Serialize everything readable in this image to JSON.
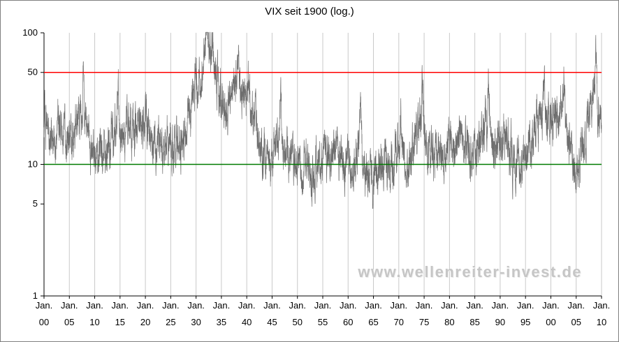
{
  "chart_data": {
    "type": "line",
    "title": "VIX seit 1900 (log.)",
    "watermark": "www.wellenreiter-invest.de",
    "scale": "log",
    "ylim": [
      1,
      100
    ],
    "y_ticks": [
      1,
      5,
      10,
      50,
      100
    ],
    "x_range_years": [
      1900,
      2010
    ],
    "x_tick_prefix": "Jan.",
    "x_tick_years": [
      "00",
      "05",
      "10",
      "15",
      "20",
      "25",
      "30",
      "35",
      "40",
      "45",
      "50",
      "55",
      "60",
      "65",
      "70",
      "75",
      "80",
      "85",
      "90",
      "95",
      "00",
      "05",
      "10"
    ],
    "grid": "vertical",
    "reference_lines": [
      {
        "name": "upper-threshold-line",
        "value": 50,
        "color": "#ff0000"
      },
      {
        "name": "lower-threshold-line",
        "value": 10,
        "color": "#007a00"
      }
    ],
    "series": [
      {
        "name": "VIX",
        "color": "#6e6e6e",
        "start_year": 1900,
        "annual_values": [
          22,
          20,
          18,
          22,
          16,
          15,
          17,
          26,
          20,
          14,
          13,
          12,
          12,
          14,
          18,
          16,
          17,
          20,
          18,
          17,
          20,
          18,
          14,
          15,
          14,
          13,
          15,
          14,
          18,
          28,
          35,
          55,
          85,
          70,
          40,
          30,
          25,
          35,
          45,
          35,
          35,
          22,
          18,
          14,
          11,
          12,
          16,
          13,
          12,
          11,
          10,
          10,
          9,
          9,
          10,
          12,
          11,
          13,
          10,
          9,
          11,
          9,
          14,
          10,
          8,
          7,
          11,
          10,
          10,
          11,
          14,
          11,
          9,
          14,
          22,
          16,
          12,
          11,
          12,
          12,
          16,
          14,
          18,
          13,
          12,
          11,
          14,
          22,
          17,
          14,
          18,
          15,
          12,
          10,
          11,
          10,
          14,
          20,
          24,
          22,
          22,
          24,
          30,
          19,
          14,
          11,
          11,
          16,
          32,
          28,
          20
        ]
      }
    ],
    "notable_extremes": [
      {
        "year": 1907.8,
        "value": 35
      },
      {
        "year": 1914.6,
        "value": 33
      },
      {
        "year": 1929.9,
        "value": 45
      },
      {
        "year": 1932.3,
        "value": 100
      },
      {
        "year": 1933.3,
        "value": 85
      },
      {
        "year": 1938.3,
        "value": 55
      },
      {
        "year": 1940.4,
        "value": 50
      },
      {
        "year": 1946.7,
        "value": 25
      },
      {
        "year": 1962.5,
        "value": 26
      },
      {
        "year": 1970.4,
        "value": 25
      },
      {
        "year": 1974.7,
        "value": 42
      },
      {
        "year": 1987.8,
        "value": 40
      },
      {
        "year": 1998.7,
        "value": 42
      },
      {
        "year": 2002.6,
        "value": 42
      },
      {
        "year": 2008.85,
        "value": 78
      },
      {
        "year": 1910.5,
        "value": 9
      },
      {
        "year": 1944.6,
        "value": 8
      },
      {
        "year": 1952.5,
        "value": 7
      },
      {
        "year": 1959.3,
        "value": 7.5
      },
      {
        "year": 1964.9,
        "value": 5.2
      },
      {
        "year": 1994.0,
        "value": 8
      }
    ]
  }
}
